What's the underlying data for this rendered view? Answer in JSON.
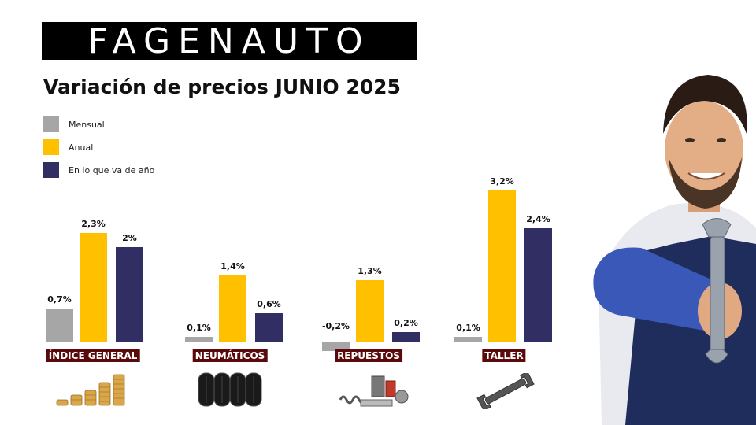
{
  "brand": {
    "logo_text": "FAGENAUTO"
  },
  "title": "Variación de precios JUNIO 2025",
  "colors": {
    "mensual": "#a6a6a6",
    "anual": "#ffc000",
    "ytd": "#302e63",
    "label_bg": "#5a0a0a"
  },
  "legend": [
    {
      "label": "Mensual",
      "color": "#a6a6a6"
    },
    {
      "label": "Anual",
      "color": "#ffc000"
    },
    {
      "label": "En lo que va de año",
      "color": "#302e63"
    }
  ],
  "icons": [
    "coins-stack-icon",
    "tires-icon",
    "auto-parts-icon",
    "wrench-icon",
    "mechanic-photo"
  ],
  "chart_data": {
    "type": "bar",
    "title": "Variación de precios JUNIO 2025",
    "categories": [
      "ÍNDICE GENERAL",
      "NEUMÁTICOS",
      "REPUESTOS",
      "TALLER"
    ],
    "series": [
      {
        "name": "Mensual",
        "values": [
          0.7,
          0.1,
          -0.2,
          0.1
        ],
        "labels": [
          "0,7%",
          "0,1%",
          "-0,2%",
          "0,1%"
        ]
      },
      {
        "name": "Anual",
        "values": [
          2.3,
          1.4,
          1.3,
          3.2
        ],
        "labels": [
          "2,3%",
          "1,4%",
          "1,3%",
          "3,2%"
        ]
      },
      {
        "name": "En lo que va de año",
        "values": [
          2.0,
          0.6,
          0.2,
          2.4
        ],
        "labels": [
          "2%",
          "0,6%",
          "0,2%",
          "2,4%"
        ]
      }
    ],
    "legend": "top-left",
    "grid": false
  }
}
